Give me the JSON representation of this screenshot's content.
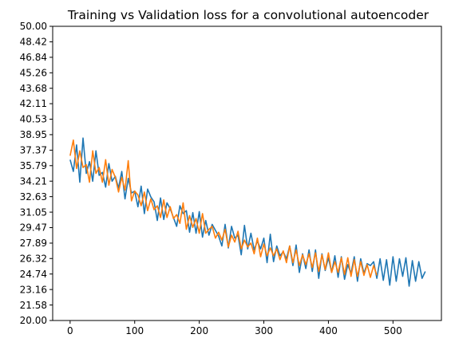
{
  "chart_data": {
    "type": "line",
    "title": "Training vs Validation loss for a convolutional autoencoder",
    "xlabel": "",
    "ylabel": "",
    "xlim": [
      -27,
      575
    ],
    "ylim": [
      20.0,
      50.0
    ],
    "xticks": [
      0,
      100,
      200,
      300,
      400,
      500
    ],
    "xtick_labels": [
      "0",
      "100",
      "200",
      "300",
      "400",
      "500"
    ],
    "yticks": [
      20.0,
      21.58,
      23.16,
      24.74,
      26.32,
      27.89,
      29.47,
      31.05,
      32.63,
      34.21,
      35.79,
      37.37,
      38.95,
      40.53,
      42.11,
      43.68,
      45.26,
      46.84,
      48.42,
      50.0
    ],
    "ytick_labels": [
      "20.00",
      "21.58",
      "23.16",
      "24.74",
      "26.32",
      "27.89",
      "29.47",
      "31.05",
      "32.63",
      "34.21",
      "35.79",
      "37.37",
      "38.95",
      "40.53",
      "42.11",
      "43.68",
      "45.26",
      "46.84",
      "48.42",
      "50.00"
    ],
    "grid": false,
    "series": [
      {
        "color": "#1f77b4",
        "x_start": 0,
        "x_step": 5,
        "y": [
          36.4,
          35.2,
          37.9,
          34.1,
          38.6,
          35.0,
          36.2,
          34.2,
          37.3,
          34.8,
          35.1,
          33.6,
          36.0,
          34.2,
          34.7,
          33.5,
          35.2,
          32.4,
          34.5,
          33.0,
          33.2,
          31.6,
          33.7,
          30.9,
          33.4,
          32.6,
          32.1,
          30.2,
          32.5,
          30.3,
          32.0,
          31.4,
          30.5,
          29.6,
          31.7,
          30.9,
          31.2,
          29.0,
          31.0,
          28.9,
          31.1,
          28.5,
          30.2,
          28.7,
          29.8,
          29.2,
          28.6,
          27.6,
          29.8,
          27.4,
          29.6,
          28.4,
          28.7,
          26.7,
          29.7,
          27.3,
          28.9,
          27.2,
          28.1,
          27.3,
          28.4,
          25.9,
          28.8,
          26.0,
          27.6,
          26.6,
          27.0,
          26.3,
          27.6,
          25.6,
          27.7,
          24.9,
          26.8,
          25.3,
          27.2,
          25.0,
          27.2,
          24.3,
          26.8,
          25.1,
          26.4,
          24.9,
          26.6,
          24.4,
          26.5,
          24.2,
          25.7,
          24.8,
          26.5,
          24.0,
          26.3,
          24.8,
          25.8,
          25.6,
          26.0,
          24.3,
          26.3,
          24.1,
          26.2,
          23.6,
          26.5,
          24.0,
          26.3,
          24.5,
          26.4,
          23.5,
          26.1,
          24.0,
          26.0,
          24.3,
          25.0
        ]
      },
      {
        "color": "#ff7f0e",
        "x_start": 0,
        "x_step": 5,
        "y": [
          36.8,
          38.4,
          35.5,
          37.3,
          35.6,
          35.9,
          34.1,
          37.3,
          35.0,
          35.6,
          34.1,
          36.4,
          33.8,
          35.4,
          34.6,
          33.1,
          34.6,
          33.3,
          36.3,
          32.2,
          33.2,
          32.8,
          31.7,
          33.1,
          31.2,
          32.4,
          31.3,
          31.7,
          30.5,
          32.3,
          30.5,
          31.6,
          30.4,
          30.8,
          29.9,
          32.0,
          29.3,
          30.7,
          29.5,
          30.4,
          28.9,
          30.9,
          28.9,
          29.3,
          29.6,
          28.4,
          29.0,
          28.2,
          29.3,
          27.5,
          28.7,
          28.0,
          29.1,
          27.3,
          28.2,
          27.5,
          27.9,
          26.8,
          28.4,
          26.5,
          27.8,
          26.6,
          27.4,
          26.6,
          27.3,
          26.2,
          27.1,
          25.9,
          27.6,
          25.9,
          27.2,
          25.6,
          26.7,
          25.7,
          26.8,
          25.4,
          26.9,
          25.0,
          26.7,
          25.2,
          26.9,
          24.9,
          26.0,
          24.9,
          26.4,
          24.7,
          26.4,
          24.5,
          26.2,
          24.5,
          26.0,
          24.6,
          25.7,
          24.4,
          25.6,
          24.6
        ]
      }
    ]
  }
}
